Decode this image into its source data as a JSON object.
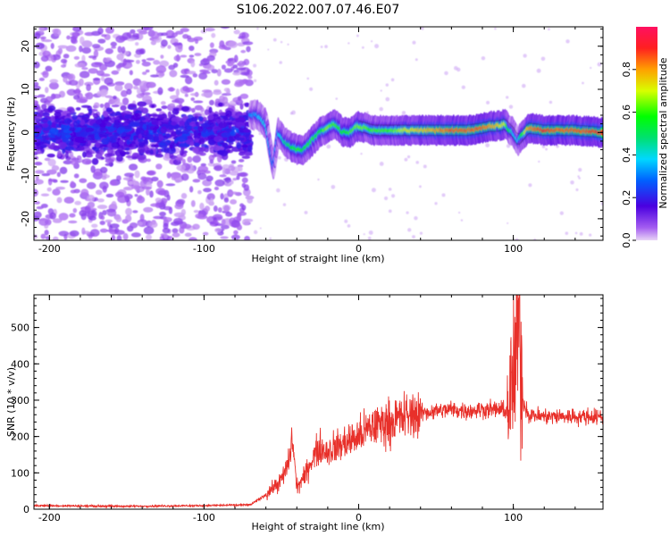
{
  "title": "S106.2022.007.07.46.E07",
  "chart_data": [
    {
      "type": "heatmap",
      "xlabel": "Height of straight line (km)",
      "ylabel": "Frequency (Hz)",
      "xlim": [
        -210,
        158
      ],
      "ylim": [
        -25,
        24.5
      ],
      "x_ticks": [
        "-200",
        "-100",
        "0",
        "100"
      ],
      "x_tick_values": [
        -200,
        -100,
        0,
        100
      ],
      "y_ticks": [
        "-20",
        "-10",
        "0",
        "10",
        "20"
      ],
      "y_tick_values": [
        -20,
        -10,
        0,
        10,
        20
      ],
      "ridge": {
        "x": [
          -70,
          -65,
          -60,
          -57,
          -55,
          -52,
          -48,
          -45,
          -40,
          -35,
          -30,
          -25,
          -20,
          -15,
          -10,
          -5,
          0,
          10,
          20,
          30,
          40,
          50,
          60,
          70,
          80,
          85,
          90,
          95,
          97,
          100,
          103,
          110,
          120,
          130,
          140,
          158
        ],
        "y": [
          4,
          4,
          2,
          -4,
          -8,
          0,
          -2,
          -3,
          -4,
          -4,
          -2,
          0,
          1,
          2,
          0,
          0,
          1.5,
          0.5,
          0.5,
          0.5,
          0.5,
          0.5,
          0.5,
          0.5,
          1,
          1.5,
          1.5,
          2,
          1,
          0,
          -2,
          1,
          0.5,
          0.5,
          0.5,
          0
        ],
        "amplitude": [
          0.3,
          0.35,
          0.4,
          0.35,
          0.3,
          0.35,
          0.45,
          0.5,
          0.6,
          0.55,
          0.6,
          0.55,
          0.65,
          0.6,
          0.55,
          0.6,
          0.65,
          0.6,
          0.6,
          0.7,
          0.75,
          0.8,
          0.85,
          0.85,
          0.85,
          0.8,
          0.75,
          0.7,
          0.55,
          0.4,
          0.35,
          0.8,
          0.9,
          0.85,
          0.85,
          0.9
        ]
      },
      "noise_region_x": [
        -210,
        -70
      ],
      "colorbar": {
        "label": "Normalized spectral amplitude",
        "range": [
          0,
          1
        ],
        "ticks": [
          "0.0",
          "0.2",
          "0.4",
          "0.6",
          "0.8"
        ],
        "tick_values": [
          0,
          0.2,
          0.4,
          0.6,
          0.8
        ]
      }
    },
    {
      "type": "line",
      "xlabel": "Height of straight line (km)",
      "ylabel": "SNR (10 * v/v)",
      "xlim": [
        -210,
        158
      ],
      "ylim": [
        0,
        590
      ],
      "x_ticks": [
        "-200",
        "-100",
        "0",
        "100"
      ],
      "x_tick_values": [
        -200,
        -100,
        0,
        100
      ],
      "y_ticks": [
        "0",
        "100",
        "200",
        "300",
        "400",
        "500"
      ],
      "y_tick_values": [
        0,
        100,
        200,
        300,
        400,
        500
      ],
      "series_color": "#e8302a",
      "envelope": {
        "x": [
          -210,
          -150,
          -100,
          -70,
          -60,
          -50,
          -45,
          -43,
          -40,
          -35,
          -30,
          -25,
          -20,
          -10,
          0,
          10,
          20,
          30,
          40,
          50,
          60,
          70,
          80,
          90,
          95,
          98,
          100,
          102,
          104,
          106,
          110,
          120,
          130,
          140,
          150,
          158
        ],
        "y": [
          10,
          8,
          10,
          12,
          40,
          80,
          130,
          200,
          60,
          90,
          140,
          170,
          160,
          180,
          200,
          230,
          240,
          255,
          265,
          270,
          275,
          270,
          275,
          275,
          270,
          300,
          350,
          450,
          540,
          300,
          260,
          255,
          255,
          255,
          255,
          255
        ]
      }
    }
  ]
}
